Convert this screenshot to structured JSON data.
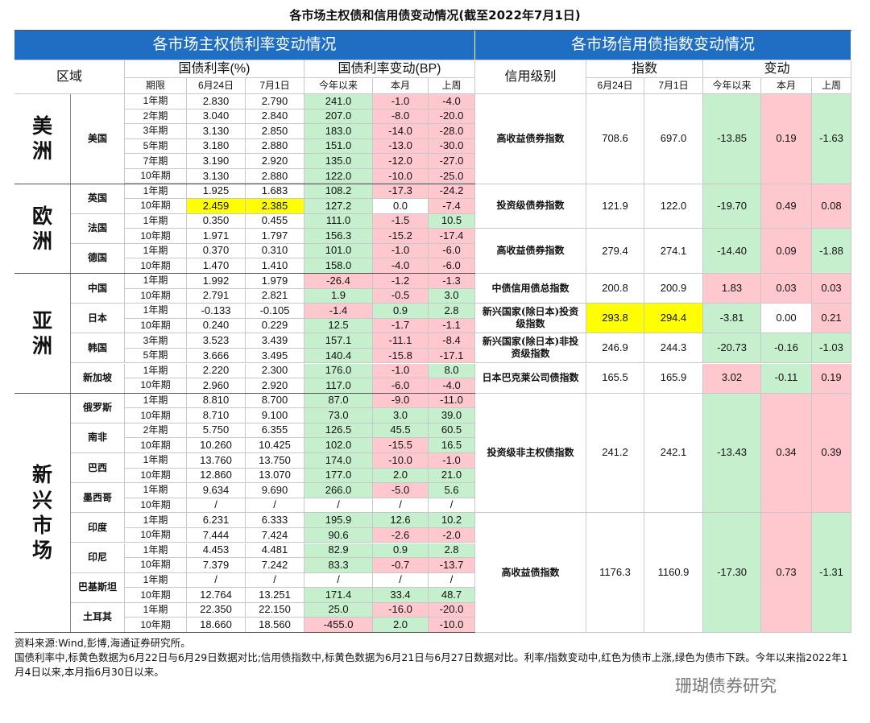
{
  "title": "各市场主权债和信用债变动情况(截至2022年7月1日)",
  "sovereign": {
    "header": "各市场主权债利率变动情况",
    "region_label": "区域",
    "rate_label": "国债利率(%)",
    "change_label": "国债利率变动(BP)",
    "columns": [
      "期限",
      "6月24日",
      "7月1日",
      "今年以来",
      "本月",
      "上周"
    ],
    "regions": [
      {
        "name": "美洲",
        "countries": [
          {
            "name": "美国",
            "rows": [
              [
                "1年期",
                "2.830",
                "2.790",
                "241.0",
                "-1.0",
                "-4.0"
              ],
              [
                "2年期",
                "3.040",
                "2.840",
                "207.0",
                "-8.0",
                "-20.0"
              ],
              [
                "3年期",
                "3.130",
                "2.850",
                "183.0",
                "-14.0",
                "-28.0"
              ],
              [
                "5年期",
                "3.180",
                "2.880",
                "151.0",
                "-13.0",
                "-30.0"
              ],
              [
                "7年期",
                "3.190",
                "2.920",
                "135.0",
                "-12.0",
                "-27.0"
              ],
              [
                "10年期",
                "3.130",
                "2.880",
                "122.0",
                "-10.0",
                "-25.0"
              ]
            ]
          }
        ]
      },
      {
        "name": "欧洲",
        "countries": [
          {
            "name": "英国",
            "rows": [
              [
                "1年期",
                "1.925",
                "1.683",
                "108.2",
                "-17.3",
                "-24.2"
              ],
              [
                "10年期",
                "2.459",
                "2.385",
                "127.2",
                "0.0",
                "-7.4"
              ]
            ]
          },
          {
            "name": "法国",
            "rows": [
              [
                "1年期",
                "0.350",
                "0.455",
                "111.0",
                "-1.5",
                "10.5"
              ],
              [
                "10年期",
                "1.971",
                "1.797",
                "156.3",
                "-15.2",
                "-17.4"
              ]
            ]
          },
          {
            "name": "德国",
            "rows": [
              [
                "1年期",
                "0.370",
                "0.310",
                "101.0",
                "-1.0",
                "-6.0"
              ],
              [
                "10年期",
                "1.470",
                "1.410",
                "158.0",
                "-4.0",
                "-6.0"
              ]
            ]
          }
        ]
      },
      {
        "name": "亚洲",
        "countries": [
          {
            "name": "中国",
            "rows": [
              [
                "1年期",
                "1.992",
                "1.979",
                "-26.4",
                "-1.2",
                "-1.3"
              ],
              [
                "10年期",
                "2.791",
                "2.821",
                "1.9",
                "-0.5",
                "3.0"
              ]
            ]
          },
          {
            "name": "日本",
            "rows": [
              [
                "1年期",
                "-0.133",
                "-0.105",
                "-1.4",
                "0.9",
                "2.8"
              ],
              [
                "10年期",
                "0.240",
                "0.229",
                "12.5",
                "-1.7",
                "-1.1"
              ]
            ]
          },
          {
            "name": "韩国",
            "rows": [
              [
                "3年期",
                "3.523",
                "3.439",
                "157.1",
                "-11.1",
                "-8.4"
              ],
              [
                "5年期",
                "3.666",
                "3.495",
                "140.4",
                "-15.8",
                "-17.1"
              ]
            ]
          },
          {
            "name": "新加坡",
            "rows": [
              [
                "1年期",
                "2.220",
                "2.300",
                "176.0",
                "-1.0",
                "8.0"
              ],
              [
                "10年期",
                "2.960",
                "2.920",
                "117.0",
                "-6.0",
                "-4.0"
              ]
            ]
          }
        ]
      },
      {
        "name": "新兴市场",
        "countries": [
          {
            "name": "俄罗斯",
            "rows": [
              [
                "1年期",
                "8.810",
                "8.700",
                "87.0",
                "-9.0",
                "-11.0"
              ],
              [
                "10年期",
                "8.710",
                "9.100",
                "73.0",
                "3.0",
                "39.0"
              ]
            ]
          },
          {
            "name": "南非",
            "rows": [
              [
                "2年期",
                "5.750",
                "6.355",
                "126.5",
                "45.5",
                "60.5"
              ],
              [
                "10年期",
                "10.260",
                "10.425",
                "102.0",
                "-15.5",
                "16.5"
              ]
            ]
          },
          {
            "name": "巴西",
            "rows": [
              [
                "1年期",
                "13.760",
                "13.750",
                "174.0",
                "-10.0",
                "-1.0"
              ],
              [
                "10年期",
                "12.860",
                "13.070",
                "177.0",
                "2.0",
                "21.0"
              ]
            ]
          },
          {
            "name": "墨西哥",
            "rows": [
              [
                "1年期",
                "9.634",
                "9.690",
                "266.0",
                "-5.0",
                "5.6"
              ],
              [
                "10年期",
                "/",
                "/",
                "/",
                "/",
                "/"
              ]
            ]
          },
          {
            "name": "印度",
            "rows": [
              [
                "1年期",
                "6.231",
                "6.333",
                "195.9",
                "12.6",
                "10.2"
              ],
              [
                "10年期",
                "7.444",
                "7.424",
                "90.6",
                "-2.6",
                "-2.0"
              ]
            ]
          },
          {
            "name": "印尼",
            "rows": [
              [
                "1年期",
                "4.453",
                "4.481",
                "82.9",
                "0.9",
                "2.8"
              ],
              [
                "10年期",
                "7.379",
                "7.242",
                "83.3",
                "-0.7",
                "-13.7"
              ]
            ]
          },
          {
            "name": "巴基斯坦",
            "rows": [
              [
                "1年期",
                "/",
                "/",
                "/",
                "/",
                "/"
              ],
              [
                "10年期",
                "12.764",
                "13.251",
                "171.4",
                "33.4",
                "48.7"
              ]
            ]
          },
          {
            "name": "土耳其",
            "rows": [
              [
                "1年期",
                "22.350",
                "22.150",
                "25.0",
                "-16.0",
                "-20.0"
              ],
              [
                "10年期",
                "18.660",
                "18.560",
                "-455.0",
                "2.0",
                "-10.0"
              ]
            ]
          }
        ]
      }
    ]
  },
  "credit": {
    "header": "各市场信用债指数变动情况",
    "grade_label": "信用级别",
    "index_label": "指数",
    "change_label": "变动",
    "columns": [
      "6月24日",
      "7月1日",
      "今年以来",
      "本月",
      "上周"
    ],
    "rows": [
      [
        "高收益债券指数",
        "708.6",
        "697.0",
        "-13.85",
        "0.19",
        "-1.63"
      ],
      [
        "投资级债券指数",
        "121.9",
        "122.0",
        "-19.70",
        "0.49",
        "0.08"
      ],
      [
        "高收益债券指数",
        "279.4",
        "274.1",
        "-14.40",
        "0.09",
        "-1.88"
      ],
      [
        "中债信用债总指数",
        "200.8",
        "200.9",
        "1.83",
        "0.03",
        "0.03"
      ],
      [
        "新兴国家(除日本)投资级指数",
        "293.8",
        "294.4",
        "-3.81",
        "0.00",
        "0.21"
      ],
      [
        "新兴国家(除日本)非投资级指数",
        "246.9",
        "244.3",
        "-20.73",
        "-0.16",
        "-1.03"
      ],
      [
        "日本巴克莱公司债指数",
        "165.5",
        "165.9",
        "3.02",
        "-0.11",
        "0.19"
      ],
      [
        "投资级非主权债指数",
        "241.2",
        "242.1",
        "-13.43",
        "0.34",
        "0.39"
      ],
      [
        "高收益债指数",
        "1176.3",
        "1160.9",
        "-17.30",
        "0.73",
        "-1.31"
      ]
    ]
  },
  "notes": [
    "资料来源:Wind,彭博,海通证券研究所。",
    "国债利率中,标黄色数据为6月22日与6月29日数据对比;信用债指数中,标黄色数据为6月21日与6月27日数据对比。利率/指数变动中,红色为债市上涨,绿色为债市下跌。今年以来指2022年1月4日以来,本月指6月30日以来。"
  ],
  "watermark": "珊瑚债券研究"
}
